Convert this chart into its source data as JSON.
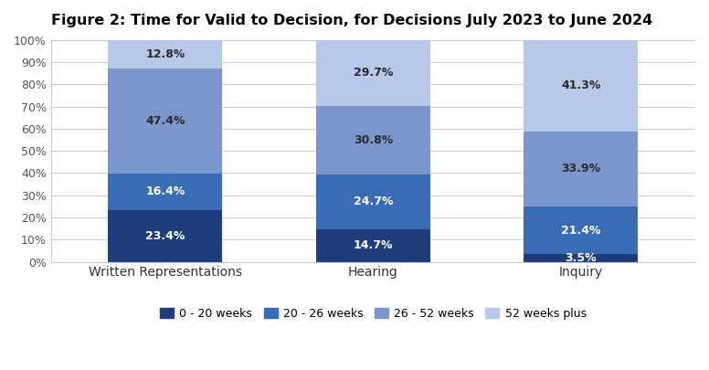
{
  "title": "Figure 2: Time for Valid to Decision, for Decisions July 2023 to June 2024",
  "categories": [
    "Written Representations",
    "Hearing",
    "Inquiry"
  ],
  "series": {
    "0 - 20 weeks": [
      23.4,
      14.7,
      3.5
    ],
    "20 - 26 weeks": [
      16.4,
      24.7,
      21.4
    ],
    "26 - 52 weeks": [
      47.4,
      30.8,
      33.9
    ],
    "52 weeks plus": [
      12.8,
      29.7,
      41.3
    ]
  },
  "colors": {
    "0 - 20 weeks": "#1f3d7a",
    "20 - 26 weeks": "#3a6bb5",
    "26 - 52 weeks": "#7b96cc",
    "52 weeks plus": "#b8c8e8"
  },
  "label_colors": {
    "0 - 20 weeks": "white",
    "20 - 26 weeks": "white",
    "26 - 52 weeks": "#2a2a2a",
    "52 weeks plus": "#2a2a2a"
  },
  "ylim": [
    0,
    100
  ],
  "yticks": [
    0,
    10,
    20,
    30,
    40,
    50,
    60,
    70,
    80,
    90,
    100
  ],
  "ytick_labels": [
    "0%",
    "10%",
    "20%",
    "30%",
    "40%",
    "50%",
    "60%",
    "70%",
    "80%",
    "90%",
    "100%"
  ],
  "background_color": "#ffffff",
  "plot_bg_color": "#ffffff",
  "grid_color": "#cccccc",
  "title_fontsize": 11.5,
  "label_fontsize": 9,
  "legend_fontsize": 9,
  "bar_width": 0.55,
  "bar_spacing": 1.0
}
